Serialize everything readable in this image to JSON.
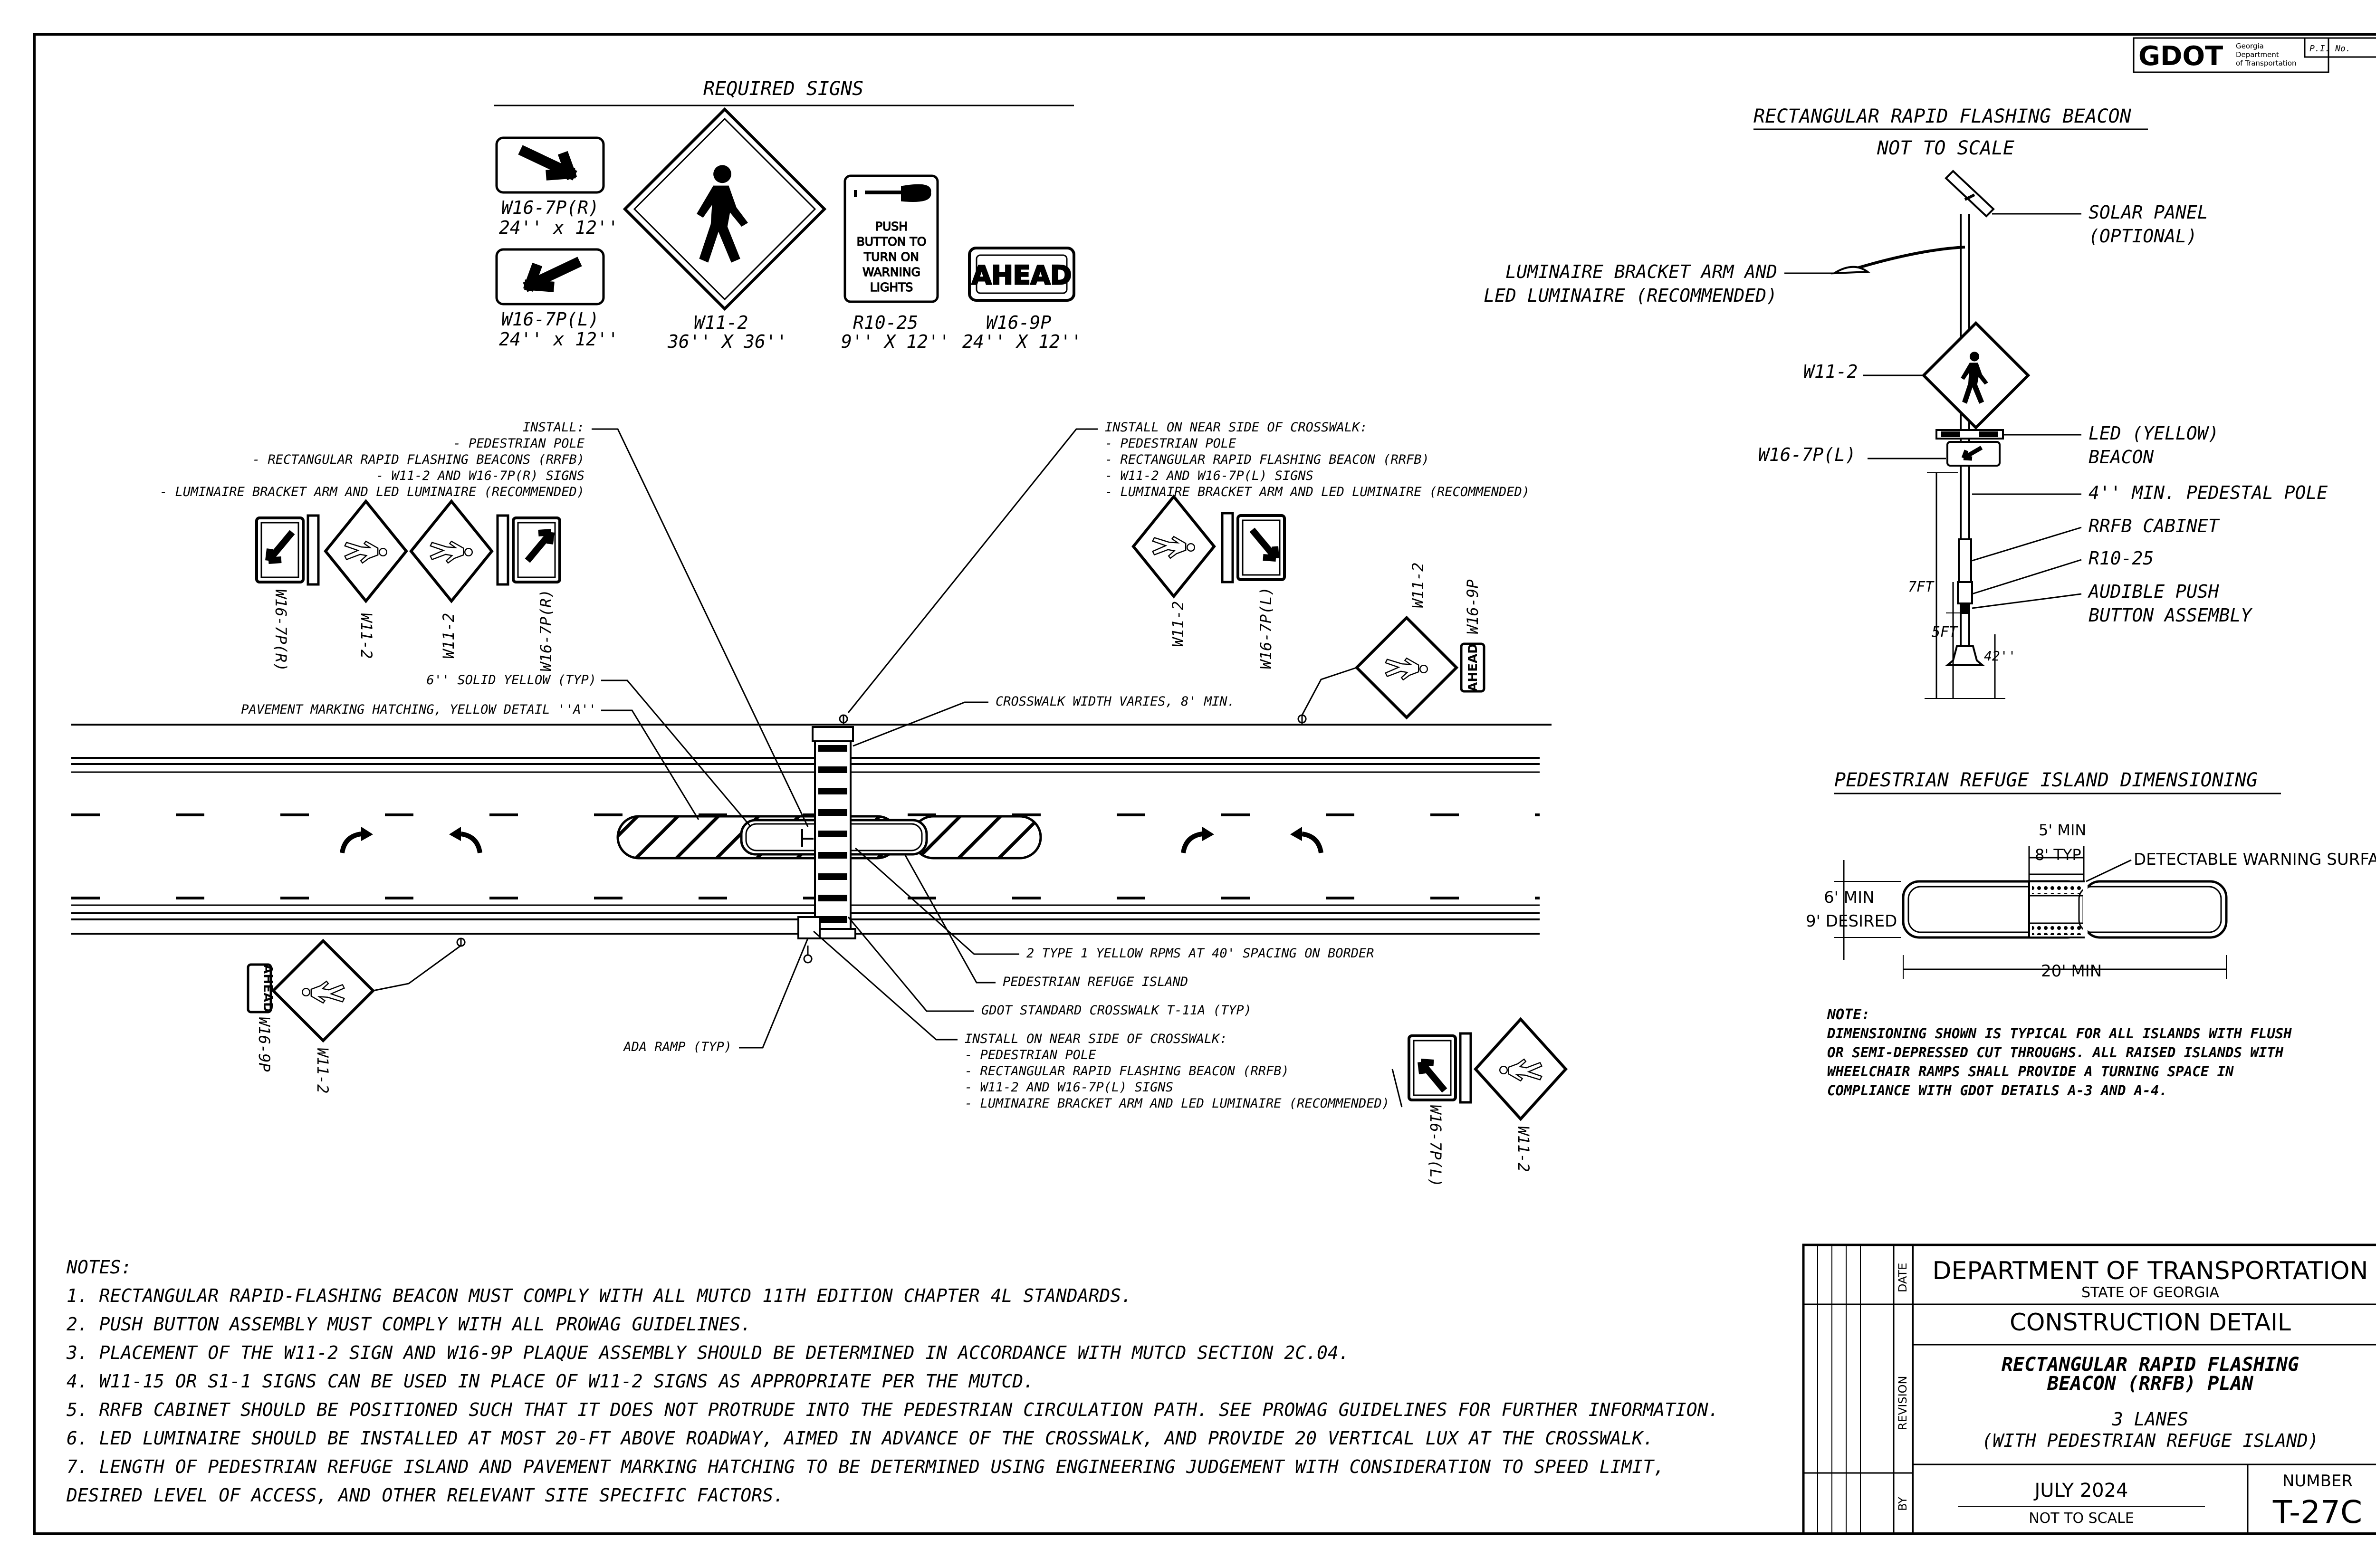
{
  "logo": {
    "text": "GDOT",
    "small": [
      "Georgia",
      "Department",
      "of Transportation"
    ],
    "pi_label": "P.I. No."
  },
  "required_signs": {
    "title": "REQUIRED SIGNS",
    "w167pr": {
      "code": "W16-7P(R)",
      "size": "24'' x 12''"
    },
    "w167pl": {
      "code": "W16-7P(L)",
      "size": "24'' x 12''"
    },
    "w112": {
      "code": "W11-2",
      "size": "36'' X 36''"
    },
    "r1025": {
      "code": "R10-25",
      "size": "9'' X 12''",
      "sign_text": [
        "PUSH",
        "BUTTON TO",
        "TURN ON",
        "WARNING",
        "LIGHTS"
      ]
    },
    "w169p": {
      "code": "W16-9P",
      "size": "24'' X 12''",
      "sign_text": "AHEAD"
    }
  },
  "rrfb": {
    "title": "RECTANGULAR RAPID FLASHING BEACON",
    "subtitle": "NOT TO SCALE",
    "labels": {
      "solar": [
        "SOLAR PANEL",
        "(OPTIONAL)"
      ],
      "luminaire": [
        "LUMINAIRE BRACKET ARM AND",
        "LED LUMINAIRE (RECOMMENDED)"
      ],
      "w112": "W11-2",
      "w167pl": "W16-7P(L)",
      "led": [
        "LED (YELLOW)",
        "BEACON"
      ],
      "pole": "4'' MIN. PEDESTAL POLE",
      "cabinet": "RRFB CABINET",
      "r1025": "R10-25",
      "push": [
        "AUDIBLE PUSH",
        "BUTTON ASSEMBLY"
      ],
      "dim7": "7FT",
      "dim5": "5FT",
      "dim42": "42''"
    }
  },
  "island": {
    "title": "PEDESTRIAN REFUGE ISLAND DIMENSIONING",
    "labels": {
      "min5": "5' MIN",
      "typ8": "8' TYP",
      "dws": "DETECTABLE WARNING SURFACE",
      "min6": "6' MIN",
      "desired9": "9' DESIRED",
      "min20": "20' MIN"
    },
    "note_title": "NOTE:",
    "note_lines": [
      "DIMENSIONING SHOWN IS TYPICAL FOR ALL ISLANDS WITH FLUSH",
      "OR SEMI-DEPRESSED CUT THROUGHS. ALL RAISED ISLANDS WITH",
      "WHEELCHAIR RAMPS SHALL PROVIDE A TURNING SPACE IN",
      "COMPLIANCE WITH GDOT DETAILS A-3 AND A-4."
    ]
  },
  "plan": {
    "install_left": [
      "INSTALL:",
      "- PEDESTRIAN POLE",
      "- RECTANGULAR RAPID FLASHING BEACONS (RRFB)",
      "- W11-2 AND W16-7P(R) SIGNS",
      "- LUMINAIRE BRACKET ARM AND LED LUMINAIRE (RECOMMENDED)"
    ],
    "install_top_right": [
      "INSTALL ON NEAR SIDE OF CROSSWALK:",
      "- PEDESTRIAN POLE",
      "- RECTANGULAR RAPID FLASHING BEACON (RRFB)",
      "- W11-2 AND W16-7P(L) SIGNS",
      "- LUMINAIRE BRACKET ARM AND LED LUMINAIRE (RECOMMENDED)"
    ],
    "install_bottom": [
      "INSTALL ON NEAR SIDE OF CROSSWALK:",
      "-  PEDESTRIAN POLE",
      "-  RECTANGULAR RAPID FLASHING BEACON (RRFB)",
      "-  W11-2 AND W16-7P(L) SIGNS",
      "-  LUMINAIRE BRACKET ARM AND LED LUMINAIRE (RECOMMENDED)"
    ],
    "yellow_solid": "6'' SOLID YELLOW (TYP)",
    "hatching": "PAVEMENT MARKING HATCHING, YELLOW DETAIL ''A''",
    "crosswalk_width": "CROSSWALK WIDTH VARIES, 8' MIN.",
    "rpms": "2 TYPE 1 YELLOW RPMS AT 40' SPACING ON BORDER",
    "refuge": "PEDESTRIAN REFUGE ISLAND",
    "gdot_crosswalk": "GDOT STANDARD CROSSWALK T-11A (TYP)",
    "ada": "ADA RAMP (TYP)",
    "sign_labels": {
      "w167pr": "W16-7P(R)",
      "w112": "W11-2",
      "w167pl": "W16-7P(L)",
      "w169p": "W16-9P",
      "ahead": "AHEAD"
    }
  },
  "notes": {
    "title": "NOTES:",
    "items": [
      "1. RECTANGULAR RAPID-FLASHING BEACON MUST COMPLY WITH ALL MUTCD 11TH EDITION CHAPTER 4L STANDARDS.",
      "2. PUSH BUTTON ASSEMBLY MUST COMPLY WITH ALL PROWAG GUIDELINES.",
      "3. PLACEMENT OF THE W11-2 SIGN AND W16-9P PLAQUE ASSEMBLY SHOULD BE DETERMINED IN ACCORDANCE WITH MUTCD SECTION 2C.04.",
      "4. W11-15 OR S1-1 SIGNS CAN BE USED IN PLACE OF W11-2 SIGNS AS APPROPRIATE PER THE MUTCD.",
      "5. RRFB CABINET SHOULD BE POSITIONED SUCH THAT IT DOES NOT PROTRUDE INTO THE PEDESTRIAN CIRCULATION PATH. SEE PROWAG GUIDELINES FOR FURTHER INFORMATION.",
      "6. LED LUMINAIRE SHOULD BE INSTALLED AT MOST 20-FT ABOVE ROADWAY, AIMED IN ADVANCE OF THE CROSSWALK, AND PROVIDE 20 VERTICAL LUX AT THE CROSSWALK.",
      "7. LENGTH OF PEDESTRIAN REFUGE ISLAND AND PAVEMENT MARKING HATCHING TO BE DETERMINED USING ENGINEERING JUDGEMENT WITH CONSIDERATION TO SPEED LIMIT,",
      "DESIRED LEVEL OF ACCESS, AND OTHER RELEVANT SITE SPECIFIC FACTORS."
    ]
  },
  "title_block": {
    "date_label": "DATE",
    "revision_label": "REVISION",
    "by_label": "BY",
    "dept": "DEPARTMENT OF TRANSPORTATION",
    "state": "STATE OF GEORGIA",
    "construction": "CONSTRUCTION DETAIL",
    "title_lines": [
      "RECTANGULAR RAPID FLASHING",
      "BEACON (RRFB) PLAN"
    ],
    "sub_lines": [
      "3 LANES",
      "(WITH PEDESTRIAN REFUGE ISLAND)"
    ],
    "date": "JULY 2024",
    "scale": "NOT TO SCALE",
    "number_label": "NUMBER",
    "number": "T-27C"
  }
}
